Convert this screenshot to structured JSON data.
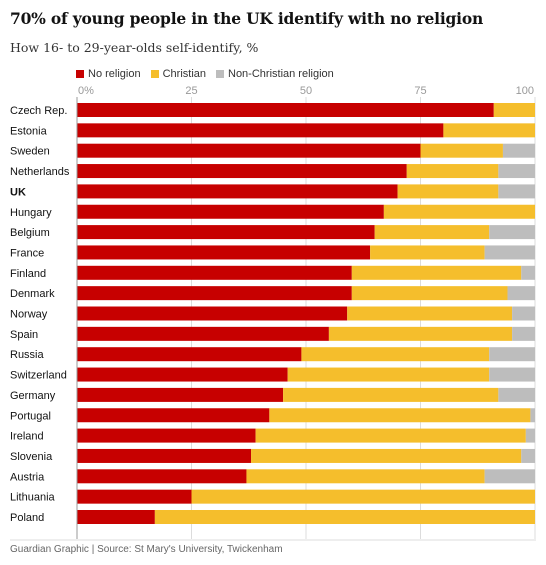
{
  "header": {
    "title": "70% of young people in the UK identify with no religion",
    "subtitle": "How 16- to 29-year-olds self-identify, %"
  },
  "footer": {
    "source": "Guardian Graphic | Source: St Mary's University, Twickenham"
  },
  "chart_data": {
    "type": "bar",
    "orientation": "horizontal",
    "stacked": true,
    "title": "70% of young people in the UK identify with no religion",
    "subtitle": "How 16- to 29-year-olds self-identify, %",
    "xlabel": "",
    "ylabel": "",
    "xlim": [
      0,
      100
    ],
    "xticks": [
      0,
      25,
      50,
      75,
      100
    ],
    "xtick_labels": [
      "0%",
      "25",
      "50",
      "75",
      "100"
    ],
    "grid": true,
    "legend_position": "top-left",
    "highlighted_category": "UK",
    "categories": [
      "Czech Rep.",
      "Estonia",
      "Sweden",
      "Netherlands",
      "UK",
      "Hungary",
      "Belgium",
      "France",
      "Finland",
      "Denmark",
      "Norway",
      "Spain",
      "Russia",
      "Switzerland",
      "Germany",
      "Portugal",
      "Ireland",
      "Slovenia",
      "Austria",
      "Lithuania",
      "Poland"
    ],
    "series": [
      {
        "name": "No religion",
        "color": "#c70000",
        "values": [
          91,
          80,
          75,
          72,
          70,
          67,
          65,
          64,
          60,
          60,
          59,
          55,
          49,
          46,
          45,
          42,
          39,
          38,
          37,
          25,
          17
        ]
      },
      {
        "name": "Christian",
        "color": "#f5be2c",
        "values": [
          9,
          20,
          18,
          20,
          22,
          33,
          25,
          25,
          37,
          34,
          36,
          40,
          41,
          44,
          47,
          57,
          59,
          59,
          52,
          75,
          83
        ]
      },
      {
        "name": "Non-Christian religion",
        "color": "#bdbdbd",
        "values": [
          0,
          0,
          7,
          8,
          8,
          0,
          10,
          11,
          3,
          6,
          5,
          5,
          10,
          10,
          8,
          1,
          2,
          3,
          11,
          0,
          0
        ]
      }
    ]
  }
}
